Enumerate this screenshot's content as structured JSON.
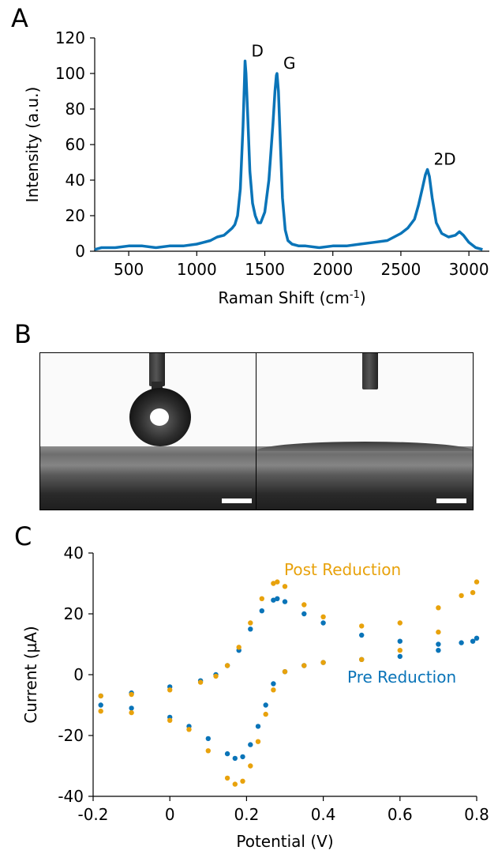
{
  "panels": {
    "a": "A",
    "b": "B",
    "c": "C"
  },
  "colors": {
    "blue": "#0a74b8",
    "orange": "#e8a20c",
    "axis": "#000000"
  },
  "chart_data": [
    {
      "type": "line",
      "xlabel": "Raman Shift (cm",
      "xlabel_sup": "-1",
      "xlabel_end": ")",
      "ylabel": "Intensity (a.u.)",
      "xlim": [
        250,
        3150
      ],
      "ylim": [
        0,
        120
      ],
      "xticks": [
        500,
        1000,
        1500,
        2000,
        2500,
        3000
      ],
      "yticks": [
        0,
        20,
        40,
        60,
        80,
        100,
        120
      ],
      "annotations": [
        {
          "text": "D",
          "x": 1355,
          "y": 107
        },
        {
          "text": "G",
          "x": 1590,
          "y": 100
        },
        {
          "text": "2D",
          "x": 2695,
          "y": 46
        }
      ],
      "series": [
        {
          "color": "#0a74b8",
          "x": [
            250,
            300,
            400,
            500,
            600,
            700,
            800,
            900,
            1000,
            1050,
            1100,
            1150,
            1200,
            1230,
            1260,
            1280,
            1300,
            1320,
            1340,
            1350,
            1355,
            1362,
            1375,
            1390,
            1410,
            1430,
            1450,
            1470,
            1500,
            1530,
            1560,
            1575,
            1585,
            1590,
            1600,
            1615,
            1630,
            1650,
            1670,
            1700,
            1750,
            1800,
            1900,
            2000,
            2100,
            2200,
            2300,
            2400,
            2450,
            2500,
            2550,
            2600,
            2630,
            2660,
            2680,
            2695,
            2710,
            2730,
            2760,
            2800,
            2850,
            2900,
            2930,
            2960,
            3000,
            3050,
            3100
          ],
          "y": [
            1,
            2,
            2,
            3,
            3,
            2,
            3,
            3,
            4,
            5,
            6,
            8,
            9,
            11,
            13,
            15,
            20,
            35,
            70,
            95,
            107,
            100,
            75,
            45,
            27,
            20,
            16,
            16,
            22,
            40,
            72,
            90,
            99,
            100,
            90,
            60,
            30,
            12,
            6,
            4,
            3,
            3,
            2,
            3,
            3,
            4,
            5,
            6,
            8,
            10,
            13,
            18,
            26,
            36,
            43,
            46,
            42,
            30,
            16,
            10,
            8,
            9,
            11,
            9,
            5,
            2,
            1
          ]
        }
      ]
    },
    {
      "type": "scatter",
      "xlabel": "Potential (V)",
      "ylabel": "Current (µA)",
      "xlim": [
        -0.2,
        0.8
      ],
      "ylim": [
        -40,
        40
      ],
      "xticks": [
        -0.2,
        0,
        0.2,
        0.4,
        0.6,
        0.8
      ],
      "yticks": [
        -40,
        -20,
        0,
        20,
        40
      ],
      "xtick_labels": [
        "-0.2",
        "0",
        "0.2",
        "0.4",
        "0.6",
        "0.8"
      ],
      "ytick_labels": [
        "-40",
        "-20",
        "0",
        "20",
        "40"
      ],
      "series": [
        {
          "name": "Pre Reduction",
          "color": "#0a74b8",
          "x": [
            -0.18,
            -0.1,
            0,
            0.08,
            0.12,
            0.15,
            0.18,
            0.21,
            0.24,
            0.27,
            0.28,
            0.3,
            0.35,
            0.4,
            0.5,
            0.6,
            0.7,
            0.76,
            0.8,
            0.79,
            0.7,
            0.6,
            0.5,
            0.4,
            0.35,
            0.3,
            0.27,
            0.25,
            0.23,
            0.21,
            0.19,
            0.17,
            0.15,
            0.1,
            0.05,
            0,
            -0.1,
            -0.18
          ],
          "y": [
            -7,
            -6,
            -4,
            -2,
            0,
            3,
            8,
            15,
            21,
            24.5,
            25,
            24,
            20,
            17,
            13,
            11,
            10,
            10.5,
            12,
            11,
            8,
            6,
            5,
            4,
            3,
            1,
            -3,
            -10,
            -17,
            -23,
            -27,
            -27.5,
            -26,
            -21,
            -17,
            -14,
            -11,
            -10
          ]
        },
        {
          "name": "Post Reduction",
          "color": "#e8a20c",
          "x": [
            -0.18,
            -0.1,
            0,
            0.08,
            0.12,
            0.15,
            0.18,
            0.21,
            0.24,
            0.27,
            0.28,
            0.3,
            0.35,
            0.4,
            0.5,
            0.6,
            0.7,
            0.76,
            0.8,
            0.79,
            0.7,
            0.6,
            0.5,
            0.4,
            0.35,
            0.3,
            0.27,
            0.25,
            0.23,
            0.21,
            0.19,
            0.17,
            0.15,
            0.1,
            0.05,
            0,
            -0.1,
            -0.18
          ],
          "y": [
            -7,
            -6.5,
            -5,
            -2.5,
            -0.5,
            3,
            9,
            17,
            25,
            30,
            30.5,
            29,
            23,
            19,
            16,
            17,
            22,
            26,
            30.5,
            27,
            14,
            8,
            5,
            4,
            3,
            1,
            -5,
            -13,
            -22,
            -30,
            -35,
            -36,
            -34,
            -25,
            -18,
            -15,
            -12.5,
            -12
          ]
        }
      ]
    }
  ]
}
